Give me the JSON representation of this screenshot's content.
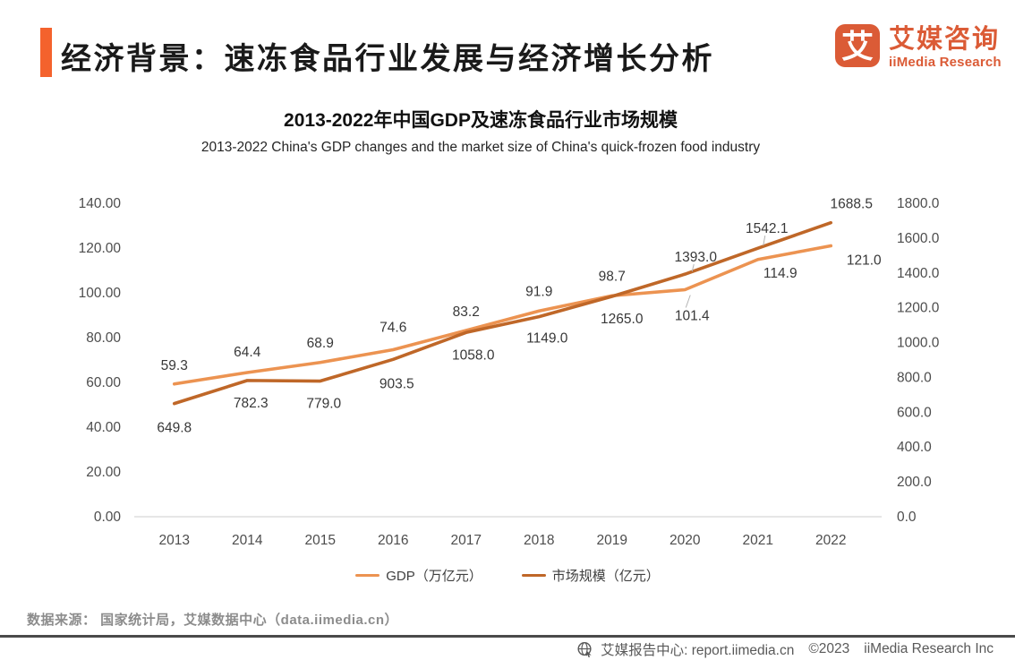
{
  "header": {
    "title": "经济背景：速冻食品行业发展与经济增长分析",
    "accent_color": "#F4622D",
    "logo": {
      "icon_char": "艾",
      "name_cn": "艾媒咨询",
      "name_en": "iiMedia Research",
      "color": "#DB5B36"
    }
  },
  "chart": {
    "title": "2013-2022年中国GDP及速冻食品行业市场规模",
    "subtitle": "2013-2022 China's GDP changes and the market size of China's quick-frozen food industry"
  },
  "chart_data": {
    "type": "line",
    "categories": [
      "2013",
      "2014",
      "2015",
      "2016",
      "2017",
      "2018",
      "2019",
      "2020",
      "2021",
      "2022"
    ],
    "series": [
      {
        "name": "GDP（万亿元）",
        "axis": "left",
        "color": "#EC9351",
        "values": [
          59.3,
          64.4,
          68.9,
          74.6,
          83.2,
          91.9,
          98.7,
          101.4,
          114.9,
          121.0
        ],
        "labels": [
          "59.3",
          "64.4",
          "68.9",
          "74.6",
          "83.2",
          "91.9",
          "98.7",
          "101.4",
          "114.9",
          "121.0"
        ],
        "label_dx": [
          0,
          0,
          0,
          0,
          0,
          0,
          0,
          8,
          25,
          37
        ],
        "label_dy": [
          -16,
          -18,
          -17,
          -20,
          -16,
          -17,
          -17,
          34,
          20,
          21
        ],
        "leader_indices": [
          7
        ]
      },
      {
        "name": "市场规模（亿元）",
        "axis": "right",
        "color": "#BF6728",
        "values": [
          649.8,
          782.3,
          779.0,
          903.5,
          1058.0,
          1149.0,
          1265.0,
          1393.0,
          1542.1,
          1688.5
        ],
        "labels": [
          "649.8",
          "782.3",
          "779.0",
          "903.5",
          "1058.0",
          "1149.0",
          "1265.0",
          "1393.0",
          "1542.1",
          "1688.5"
        ],
        "label_dx": [
          0,
          4,
          4,
          4,
          8,
          9,
          11,
          12,
          10,
          23
        ],
        "label_dy": [
          32,
          30,
          30,
          32,
          30,
          29,
          30,
          -14,
          -17,
          -16
        ],
        "leader_indices": [
          7,
          8
        ]
      }
    ],
    "left_axis": {
      "min": 0,
      "max": 140,
      "ticks": [
        "0.00",
        "20.00",
        "40.00",
        "60.00",
        "80.00",
        "100.00",
        "120.00",
        "140.00"
      ]
    },
    "right_axis": {
      "min": 0,
      "max": 1800,
      "ticks": [
        "0.0",
        "200.0",
        "400.0",
        "600.0",
        "800.0",
        "1000.0",
        "1200.0",
        "1400.0",
        "1600.0",
        "1800.0"
      ]
    },
    "grid": false,
    "legend_position": "bottom",
    "colors": {
      "tick_text": "#4D4D4D",
      "data_label_text": "#383838",
      "axis_line": "#D8D8D8",
      "leader_line": "#B3B3B3"
    }
  },
  "footer": {
    "source": "数据来源： 国家统计局，艾媒数据中心（data.iimedia.cn）"
  },
  "bottombar": {
    "site": "艾媒报告中心: report.iimedia.cn",
    "copyright": "©2023",
    "company": "iiMedia Research Inc"
  }
}
